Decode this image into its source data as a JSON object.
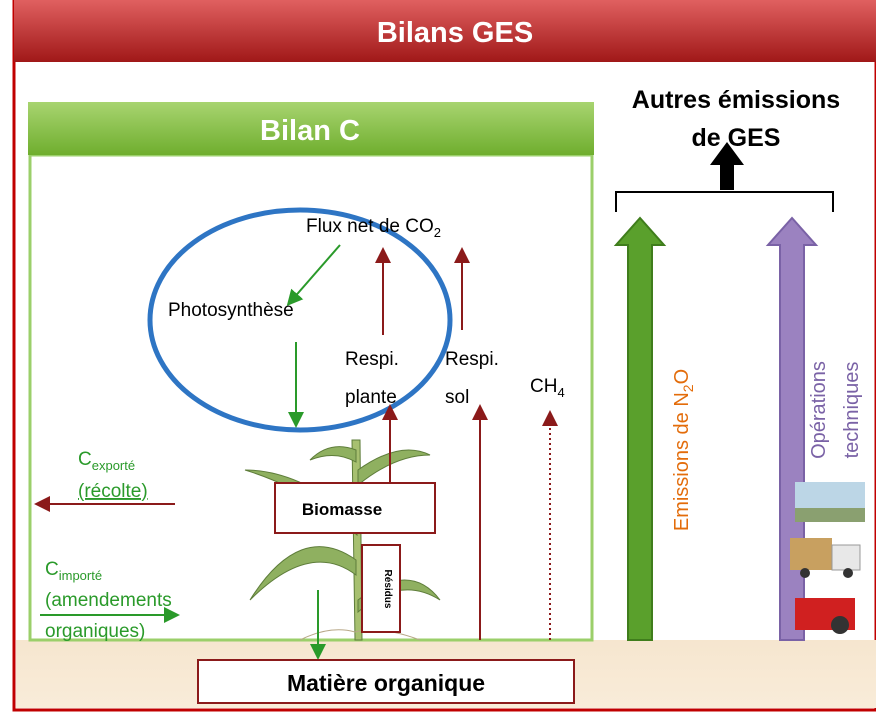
{
  "header": {
    "title": "Bilans GES"
  },
  "other_emissions": {
    "line1": "Autres émissions",
    "line2": "de GES"
  },
  "carbon_box": {
    "title": "Bilan C"
  },
  "ellipse": {
    "flux": {
      "text": "Flux net de CO",
      "sub": "2"
    },
    "photosynthesis": "Photosynthèse"
  },
  "respiration": {
    "plant": {
      "line1": "Respi.",
      "line2": "plante"
    },
    "soil": {
      "line1": "Respi.",
      "line2": "sol"
    }
  },
  "methane": {
    "text": "CH",
    "sub": "4"
  },
  "exported": {
    "main": "C",
    "sub": "exporté",
    "line2": "(récolte)"
  },
  "imported": {
    "main": "C",
    "sub": "importé",
    "line2": "(amendements",
    "line3": "organiques)"
  },
  "biomass": "Biomasse",
  "residues": "Résidus",
  "organic_matter": "Matière organique",
  "n2o": {
    "text": "Emissions de N",
    "sub": "2",
    "tail": "O"
  },
  "operations": {
    "line1": "Opérations",
    "line2": "techniques"
  }
}
